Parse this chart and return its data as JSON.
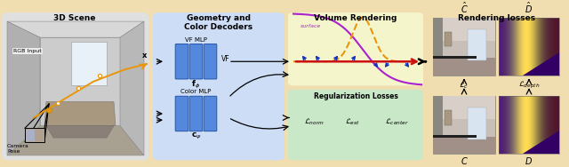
{
  "fig_width": 6.4,
  "fig_height": 1.88,
  "dpi": 100,
  "bg_color": "#f0ddb0",
  "section1_bg": "#e0e0e0",
  "section2_bg": "#ccddf5",
  "section3_bg": "#f5f5cc",
  "section_reg_bg": "#c8e8c8",
  "section4_bg": "#f0ddb0",
  "mlp_color": "#5588dd",
  "title_fontsize": 6.5,
  "label_fontsize": 5.5,
  "title1": "3D Scene",
  "title2": "Geometry and\nColor Decoders",
  "title3": "Volume Rendering",
  "title4": "Rendering losses",
  "label_vf_mlp": "VF MLP",
  "label_vf": "VF",
  "label_color_mlp": "Color MLP",
  "label_f": "$\\mathbf{f}_{\\phi}$",
  "label_c": "$\\mathbf{c}_{\\psi}$",
  "label_x": "$\\mathbf{x}$",
  "label_reg": "Regularization Losses",
  "label_norm": "$\\mathcal{L}_{norm}$",
  "label_est": "$\\mathcal{L}_{est}$",
  "label_center": "$\\mathcal{L}_{center}$",
  "label_Lc": "$\\mathcal{L}_{c}$",
  "label_Ldepth": "$\\mathcal{L}_{depth}$",
  "label_Chat": "$\\hat{C}$",
  "label_Dhat": "$\\hat{D}$",
  "label_C": "$C$",
  "label_D": "$D$",
  "label_rgb": "RGB Input",
  "label_cam": "Camera\nPose",
  "surface_label": "surface",
  "orange_color": "#e8960c",
  "purple_color": "#aa22cc",
  "red_color": "#cc1111",
  "blue_arrow_color": "#1133bb"
}
